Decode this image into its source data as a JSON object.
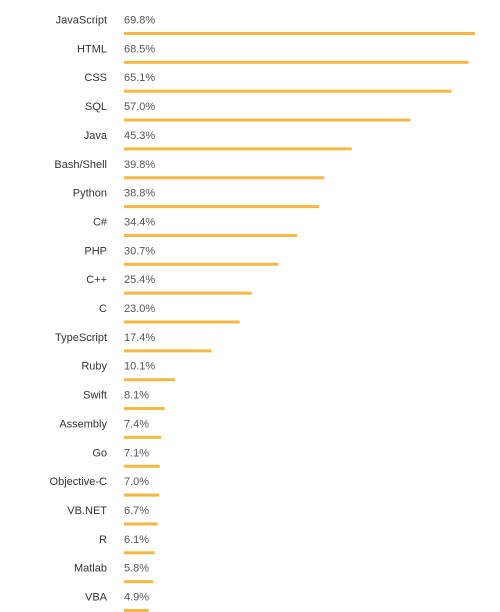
{
  "chart_data": {
    "type": "bar",
    "orientation": "horizontal",
    "categories": [
      "JavaScript",
      "HTML",
      "CSS",
      "SQL",
      "Java",
      "Bash/Shell",
      "Python",
      "C#",
      "PHP",
      "C++",
      "C",
      "TypeScript",
      "Ruby",
      "Swift",
      "Assembly",
      "Go",
      "Objective-C",
      "VB.NET",
      "R",
      "Matlab",
      "VBA"
    ],
    "values": [
      69.8,
      68.5,
      65.1,
      57.0,
      45.3,
      39.8,
      38.8,
      34.4,
      30.7,
      25.4,
      23.0,
      17.4,
      10.1,
      8.1,
      7.4,
      7.1,
      7.0,
      6.7,
      6.1,
      5.8,
      4.9
    ],
    "value_labels": [
      "69.8%",
      "68.5%",
      "65.1%",
      "57.0%",
      "45.3%",
      "39.8%",
      "38.8%",
      "34.4%",
      "30.7%",
      "25.4%",
      "23.0%",
      "17.4%",
      "10.1%",
      "8.1%",
      "7.4%",
      "7.1%",
      "7.0%",
      "6.7%",
      "6.1%",
      "5.8%",
      "4.9%"
    ],
    "unit": "%",
    "bar_color": "#F4B942",
    "grid": false,
    "legend": "none"
  }
}
